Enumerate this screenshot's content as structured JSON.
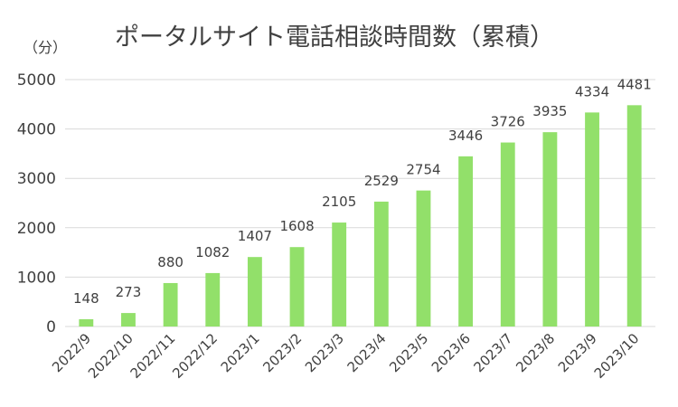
{
  "chart_data": {
    "type": "bar",
    "title": "ポータルサイト電話相談時間数（累積）",
    "ylabel": "（分）",
    "xlabel": "",
    "categories": [
      "2022/9",
      "2022/10",
      "2022/11",
      "2022/12",
      "2023/1",
      "2023/2",
      "2023/3",
      "2023/4",
      "2023/5",
      "2023/6",
      "2023/7",
      "2023/8",
      "2023/9",
      "2023/10"
    ],
    "values": [
      148,
      273,
      880,
      1082,
      1407,
      1608,
      2105,
      2529,
      2754,
      3446,
      3726,
      3935,
      4334,
      4481
    ],
    "ylim": [
      0,
      5000
    ],
    "yticks": [
      0,
      1000,
      2000,
      3000,
      4000,
      5000
    ],
    "grid": true,
    "legend": "none",
    "data_labels": true,
    "bar_color": "#92e06a",
    "grid_color": "#d9d9d9",
    "text_color": "#404040"
  }
}
